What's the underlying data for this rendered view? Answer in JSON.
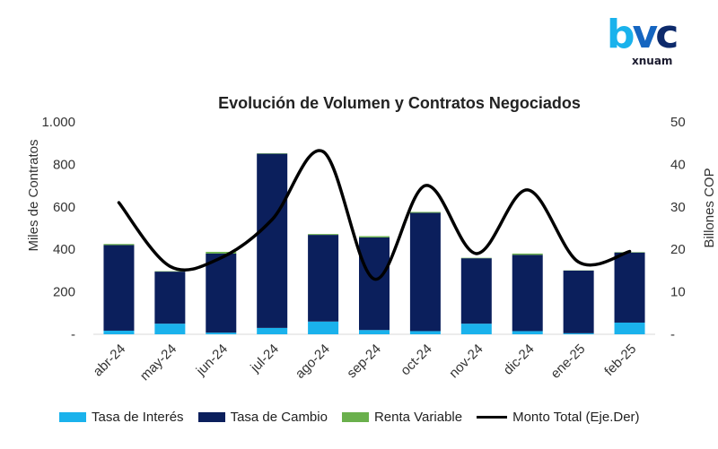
{
  "brand": {
    "logo_main": "bvc",
    "logo_sub": "xnuam"
  },
  "chart_data": {
    "type": "bar",
    "title": "Evolución de Volumen y Contratos Negociados",
    "categories": [
      "abr-24",
      "may-24",
      "jun-24",
      "jul-24",
      "ago-24",
      "sep-24",
      "oct-24",
      "nov-24",
      "dic-24",
      "ene-25",
      "feb-25"
    ],
    "ylabel": "Miles de Contratos",
    "y2label": "Billones COP",
    "ylim": [
      0,
      1000
    ],
    "y2lim": [
      0,
      50
    ],
    "yticks": [
      "-",
      "200",
      "400",
      "600",
      "800",
      "1.000"
    ],
    "y2ticks": [
      "-",
      "10",
      "20",
      "30",
      "40",
      "50"
    ],
    "stacked": true,
    "series": [
      {
        "name": "Tasa de Interés",
        "color": "#1ab2ec",
        "values": [
          17,
          50,
          8,
          30,
          60,
          20,
          15,
          50,
          15,
          5,
          55
        ]
      },
      {
        "name": "Tasa de Cambio",
        "color": "#0b1f5c",
        "values": [
          403,
          245,
          372,
          820,
          408,
          436,
          557,
          308,
          359,
          295,
          330
        ]
      },
      {
        "name": "Renta Variable",
        "color": "#6ab04c",
        "values": [
          5,
          2,
          8,
          2,
          4,
          6,
          4,
          2,
          6,
          1,
          2
        ]
      }
    ],
    "line": {
      "name": "Monto Total (Eje.Der)",
      "color": "#000000",
      "values": [
        31,
        16,
        18,
        27,
        43,
        13,
        35,
        19,
        34,
        17,
        19.5
      ]
    }
  }
}
